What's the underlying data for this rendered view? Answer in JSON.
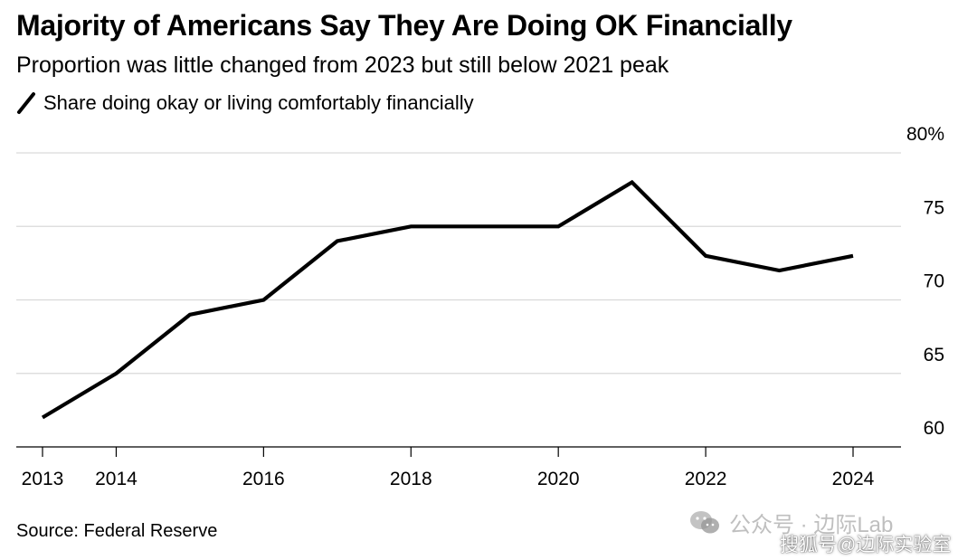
{
  "chart_data": {
    "type": "line",
    "title": "Majority of Americans Say They Are Doing OK Financially",
    "subtitle": "Proportion was little changed from 2023 but still below 2021 peak",
    "series": [
      {
        "name": "Share doing okay or living comfortably financially",
        "color": "#000000",
        "x": [
          2013,
          2014,
          2015,
          2016,
          2017,
          2018,
          2019,
          2020,
          2021,
          2022,
          2023,
          2024
        ],
        "values": [
          62,
          65,
          69,
          70,
          74,
          75,
          75,
          75,
          78,
          73,
          72,
          73
        ]
      }
    ],
    "xlim": [
      2013,
      2024
    ],
    "ylim": [
      60,
      80
    ],
    "x_ticks": [
      2013,
      2014,
      2016,
      2018,
      2020,
      2022,
      2024
    ],
    "y_ticks": [
      60,
      65,
      70,
      75,
      80
    ],
    "y_tick_labels": [
      "60",
      "65",
      "70",
      "75",
      "80%"
    ],
    "y_axis_position": "right",
    "grid": true,
    "legend_placement": "top-left",
    "source": "Source: Federal Reserve"
  },
  "watermark": {
    "text": "公众号 · 边际Lab",
    "icon": "wechat-icon",
    "credit": "搜狐号@边际实验室"
  }
}
